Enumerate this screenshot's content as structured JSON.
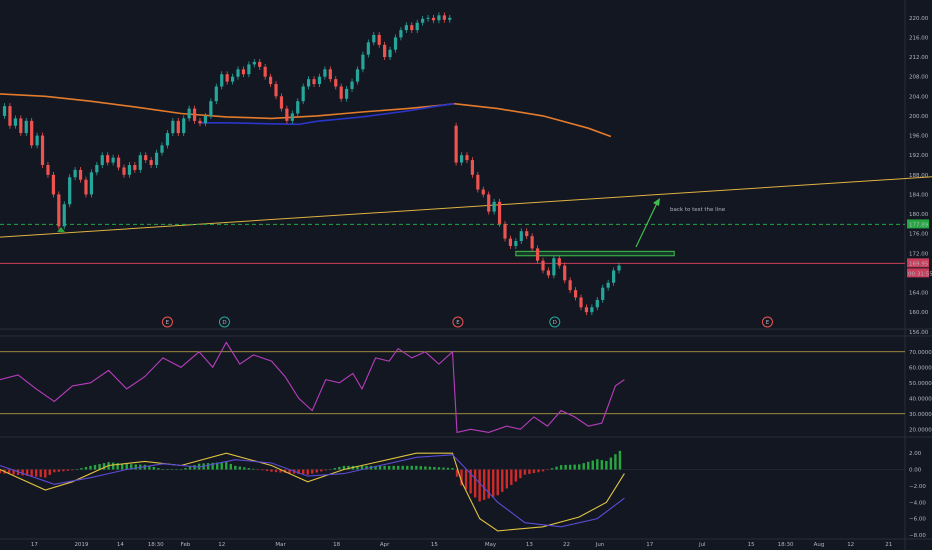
{
  "chart_data": [
    {
      "type": "candlestick",
      "panel": "price",
      "ylim": [
        158,
        222
      ],
      "y_ticks": [
        "220.00",
        "216.00",
        "212.00",
        "208.00",
        "204.00",
        "200.00",
        "196.00",
        "192.00",
        "188.00",
        "184.00",
        "180.00",
        "176.00",
        "172.00",
        "168.00",
        "164.00",
        "160.00",
        "156.00"
      ],
      "price_labels": [
        "177.89",
        "169.95",
        "00:31:55"
      ],
      "price_label_values": [
        177.89,
        169.95
      ],
      "annotation": "back to test the line",
      "events": [
        {
          "label": "E",
          "x": 0.185
        },
        {
          "label": "D",
          "x": 0.248
        },
        {
          "label": "E",
          "x": 0.506
        },
        {
          "label": "D",
          "x": 0.613
        },
        {
          "label": "E",
          "x": 0.848
        }
      ],
      "ma_orange": [
        [
          0,
          204.5
        ],
        [
          0.05,
          204.0
        ],
        [
          0.1,
          203.0
        ],
        [
          0.15,
          201.8
        ],
        [
          0.2,
          200.5
        ],
        [
          0.25,
          199.8
        ],
        [
          0.3,
          199.5
        ],
        [
          0.35,
          200.0
        ],
        [
          0.4,
          200.8
        ],
        [
          0.45,
          201.5
        ],
        [
          0.49,
          202.2
        ],
        [
          0.502,
          202.5
        ],
        [
          0.55,
          201.5
        ],
        [
          0.6,
          200.0
        ],
        [
          0.65,
          197.5
        ],
        [
          0.675,
          195.8
        ]
      ],
      "ma_blue": [
        [
          0.22,
          198.6
        ],
        [
          0.25,
          198.6
        ],
        [
          0.3,
          198.4
        ],
        [
          0.33,
          198.3
        ],
        [
          0.35,
          198.9
        ],
        [
          0.4,
          199.8
        ],
        [
          0.45,
          201.0
        ],
        [
          0.48,
          201.9
        ],
        [
          0.502,
          202.5
        ]
      ],
      "trendline": [
        [
          0,
          175.3
        ],
        [
          0.98,
          187.0
        ]
      ],
      "green_hline": 177.89,
      "red_hline": 169.95,
      "green_zone": [
        0.57,
        0.745,
        171.5,
        172.4
      ],
      "candles": [
        {
          "x": 0.005,
          "o": 200.0,
          "c": 202.0
        },
        {
          "x": 0.011,
          "o": 202.0,
          "c": 198.0
        },
        {
          "x": 0.017,
          "o": 198.0,
          "c": 199.5
        },
        {
          "x": 0.023,
          "o": 199.5,
          "c": 196.5
        },
        {
          "x": 0.029,
          "o": 196.5,
          "c": 199.0
        },
        {
          "x": 0.035,
          "o": 199.0,
          "c": 194.0
        },
        {
          "x": 0.041,
          "o": 194.0,
          "c": 196.0
        },
        {
          "x": 0.047,
          "o": 196.0,
          "c": 190.0
        },
        {
          "x": 0.053,
          "o": 190.0,
          "c": 188.0
        },
        {
          "x": 0.059,
          "o": 188.0,
          "c": 184.0
        },
        {
          "x": 0.065,
          "o": 184.0,
          "c": 177.5
        },
        {
          "x": 0.071,
          "o": 177.5,
          "c": 182.0
        },
        {
          "x": 0.077,
          "o": 182.0,
          "c": 187.5
        },
        {
          "x": 0.083,
          "o": 187.5,
          "c": 189.0
        },
        {
          "x": 0.089,
          "o": 189.0,
          "c": 187.0
        },
        {
          "x": 0.095,
          "o": 187.0,
          "c": 184.0
        },
        {
          "x": 0.101,
          "o": 184.0,
          "c": 188.5
        },
        {
          "x": 0.107,
          "o": 188.5,
          "c": 190.0
        },
        {
          "x": 0.113,
          "o": 190.0,
          "c": 192.0
        },
        {
          "x": 0.119,
          "o": 192.0,
          "c": 190.5
        },
        {
          "x": 0.125,
          "o": 190.5,
          "c": 191.5
        },
        {
          "x": 0.131,
          "o": 191.5,
          "c": 189.5
        },
        {
          "x": 0.137,
          "o": 189.5,
          "c": 188.0
        },
        {
          "x": 0.143,
          "o": 188.0,
          "c": 190.0
        },
        {
          "x": 0.149,
          "o": 190.0,
          "c": 189.0
        },
        {
          "x": 0.155,
          "o": 189.0,
          "c": 192.0
        },
        {
          "x": 0.161,
          "o": 192.0,
          "c": 191.0
        },
        {
          "x": 0.167,
          "o": 191.0,
          "c": 190.0
        },
        {
          "x": 0.173,
          "o": 190.0,
          "c": 192.5
        },
        {
          "x": 0.179,
          "o": 192.5,
          "c": 194.0
        },
        {
          "x": 0.185,
          "o": 194.0,
          "c": 196.5
        },
        {
          "x": 0.191,
          "o": 196.5,
          "c": 199.0
        },
        {
          "x": 0.197,
          "o": 199.0,
          "c": 196.5
        },
        {
          "x": 0.203,
          "o": 196.5,
          "c": 199.5
        },
        {
          "x": 0.209,
          "o": 199.5,
          "c": 201.5
        },
        {
          "x": 0.215,
          "o": 201.5,
          "c": 199.0
        },
        {
          "x": 0.221,
          "o": 199.0,
          "c": 198.5
        },
        {
          "x": 0.227,
          "o": 198.5,
          "c": 200.0
        },
        {
          "x": 0.233,
          "o": 200.0,
          "c": 203.0
        },
        {
          "x": 0.239,
          "o": 203.0,
          "c": 206.0
        },
        {
          "x": 0.245,
          "o": 206.0,
          "c": 208.5
        },
        {
          "x": 0.251,
          "o": 208.5,
          "c": 207.0
        },
        {
          "x": 0.257,
          "o": 207.0,
          "c": 208.0
        },
        {
          "x": 0.263,
          "o": 208.0,
          "c": 209.5
        },
        {
          "x": 0.269,
          "o": 209.5,
          "c": 208.5
        },
        {
          "x": 0.275,
          "o": 208.5,
          "c": 210.5
        },
        {
          "x": 0.281,
          "o": 210.5,
          "c": 211.0
        },
        {
          "x": 0.287,
          "o": 211.0,
          "c": 210.0
        },
        {
          "x": 0.293,
          "o": 210.0,
          "c": 208.0
        },
        {
          "x": 0.299,
          "o": 208.0,
          "c": 206.5
        },
        {
          "x": 0.305,
          "o": 206.5,
          "c": 204.0
        },
        {
          "x": 0.311,
          "o": 204.0,
          "c": 201.5
        },
        {
          "x": 0.317,
          "o": 201.5,
          "c": 199.0
        },
        {
          "x": 0.323,
          "o": 199.0,
          "c": 200.5
        },
        {
          "x": 0.329,
          "o": 200.5,
          "c": 203.0
        },
        {
          "x": 0.335,
          "o": 203.0,
          "c": 206.0
        },
        {
          "x": 0.341,
          "o": 206.0,
          "c": 207.5
        },
        {
          "x": 0.347,
          "o": 207.5,
          "c": 206.5
        },
        {
          "x": 0.353,
          "o": 206.5,
          "c": 208.0
        },
        {
          "x": 0.359,
          "o": 208.0,
          "c": 209.5
        },
        {
          "x": 0.365,
          "o": 209.5,
          "c": 207.5
        },
        {
          "x": 0.371,
          "o": 207.5,
          "c": 206.0
        },
        {
          "x": 0.377,
          "o": 206.0,
          "c": 203.5
        },
        {
          "x": 0.383,
          "o": 203.5,
          "c": 205.5
        },
        {
          "x": 0.389,
          "o": 205.5,
          "c": 207.0
        },
        {
          "x": 0.395,
          "o": 207.0,
          "c": 209.5
        },
        {
          "x": 0.401,
          "o": 209.5,
          "c": 212.5
        },
        {
          "x": 0.407,
          "o": 212.5,
          "c": 215.0
        },
        {
          "x": 0.413,
          "o": 215.0,
          "c": 216.5
        },
        {
          "x": 0.419,
          "o": 216.5,
          "c": 214.5
        },
        {
          "x": 0.425,
          "o": 214.5,
          "c": 212.0
        },
        {
          "x": 0.431,
          "o": 212.0,
          "c": 213.5
        },
        {
          "x": 0.437,
          "o": 213.5,
          "c": 216.0
        },
        {
          "x": 0.443,
          "o": 216.0,
          "c": 217.5
        },
        {
          "x": 0.449,
          "o": 217.5,
          "c": 218.5
        },
        {
          "x": 0.455,
          "o": 218.5,
          "c": 217.5
        },
        {
          "x": 0.461,
          "o": 217.5,
          "c": 219.0
        },
        {
          "x": 0.467,
          "o": 219.0,
          "c": 219.8
        },
        {
          "x": 0.473,
          "o": 219.8,
          "c": 220.0
        },
        {
          "x": 0.479,
          "o": 220.0,
          "c": 219.5
        },
        {
          "x": 0.485,
          "o": 219.5,
          "c": 220.5
        },
        {
          "x": 0.491,
          "o": 220.5,
          "c": 219.6
        },
        {
          "x": 0.497,
          "o": 219.6,
          "c": 220.0
        },
        {
          "x": 0.504,
          "o": 198.0,
          "c": 190.5
        },
        {
          "x": 0.51,
          "o": 190.5,
          "c": 192.0
        },
        {
          "x": 0.516,
          "o": 192.0,
          "c": 191.0
        },
        {
          "x": 0.522,
          "o": 191.0,
          "c": 188.0
        },
        {
          "x": 0.528,
          "o": 188.0,
          "c": 185.0
        },
        {
          "x": 0.534,
          "o": 185.0,
          "c": 184.0
        },
        {
          "x": 0.54,
          "o": 184.0,
          "c": 180.5
        },
        {
          "x": 0.546,
          "o": 180.5,
          "c": 182.5
        },
        {
          "x": 0.552,
          "o": 182.5,
          "c": 178.0
        },
        {
          "x": 0.558,
          "o": 178.0,
          "c": 175.0
        },
        {
          "x": 0.564,
          "o": 175.0,
          "c": 173.5
        },
        {
          "x": 0.57,
          "o": 173.5,
          "c": 174.5
        },
        {
          "x": 0.576,
          "o": 174.5,
          "c": 176.5
        },
        {
          "x": 0.582,
          "o": 176.5,
          "c": 175.5
        },
        {
          "x": 0.588,
          "o": 175.5,
          "c": 173.0
        },
        {
          "x": 0.594,
          "o": 173.0,
          "c": 170.5
        },
        {
          "x": 0.6,
          "o": 170.5,
          "c": 168.5
        },
        {
          "x": 0.606,
          "o": 168.5,
          "c": 167.5
        },
        {
          "x": 0.612,
          "o": 167.5,
          "c": 171.0
        },
        {
          "x": 0.618,
          "o": 171.0,
          "c": 169.5
        },
        {
          "x": 0.624,
          "o": 169.5,
          "c": 166.5
        },
        {
          "x": 0.63,
          "o": 166.5,
          "c": 164.5
        },
        {
          "x": 0.636,
          "o": 164.5,
          "c": 163.0
        },
        {
          "x": 0.642,
          "o": 163.0,
          "c": 161.0
        },
        {
          "x": 0.648,
          "o": 161.0,
          "c": 160.0
        },
        {
          "x": 0.654,
          "o": 160.0,
          "c": 161.0
        },
        {
          "x": 0.66,
          "o": 161.0,
          "c": 162.5
        },
        {
          "x": 0.666,
          "o": 162.5,
          "c": 165.0
        },
        {
          "x": 0.672,
          "o": 165.0,
          "c": 166.0
        },
        {
          "x": 0.678,
          "o": 166.0,
          "c": 168.5
        },
        {
          "x": 0.684,
          "o": 168.5,
          "c": 169.5
        }
      ]
    },
    {
      "type": "line",
      "panel": "rsi",
      "ylim": [
        15,
        75
      ],
      "y_ticks": [
        "70.0000",
        "60.0000",
        "50.0000",
        "40.0000",
        "30.0000",
        "20.0000"
      ],
      "bands": [
        70,
        30
      ],
      "series": [
        {
          "values": [
            [
              0,
              52
            ],
            [
              0.02,
              55
            ],
            [
              0.04,
              46
            ],
            [
              0.06,
              38
            ],
            [
              0.08,
              48
            ],
            [
              0.1,
              50
            ],
            [
              0.12,
              58
            ],
            [
              0.14,
              46
            ],
            [
              0.16,
              54
            ],
            [
              0.18,
              66
            ],
            [
              0.2,
              60
            ],
            [
              0.22,
              70
            ],
            [
              0.235,
              60
            ],
            [
              0.25,
              76
            ],
            [
              0.265,
              62
            ],
            [
              0.28,
              68
            ],
            [
              0.3,
              64
            ],
            [
              0.315,
              54
            ],
            [
              0.33,
              40
            ],
            [
              0.345,
              32
            ],
            [
              0.36,
              52
            ],
            [
              0.375,
              50
            ],
            [
              0.39,
              56
            ],
            [
              0.4,
              46
            ],
            [
              0.415,
              66
            ],
            [
              0.43,
              64
            ],
            [
              0.44,
              72
            ],
            [
              0.455,
              66
            ],
            [
              0.47,
              70
            ],
            [
              0.485,
              62
            ],
            [
              0.5,
              70
            ],
            [
              0.505,
              18
            ],
            [
              0.52,
              20
            ],
            [
              0.54,
              18
            ],
            [
              0.56,
              22
            ],
            [
              0.575,
              20
            ],
            [
              0.59,
              28
            ],
            [
              0.605,
              22
            ],
            [
              0.62,
              32
            ],
            [
              0.635,
              28
            ],
            [
              0.65,
              22
            ],
            [
              0.665,
              24
            ],
            [
              0.68,
              48
            ],
            [
              0.69,
              52
            ]
          ]
        }
      ]
    },
    {
      "type": "line",
      "panel": "macd",
      "ylim": [
        -8,
        3
      ],
      "y_ticks": [
        "2.00",
        "0.00",
        "−2.00",
        "−4.00",
        "−6.00",
        "−8.00"
      ],
      "series": [
        {
          "values": [
            [
              0,
              0
            ],
            [
              0.05,
              -2.5
            ],
            [
              0.08,
              -1.5
            ],
            [
              0.12,
              0.5
            ],
            [
              0.16,
              1
            ],
            [
              0.2,
              0.5
            ],
            [
              0.25,
              2
            ],
            [
              0.3,
              0.5
            ],
            [
              0.34,
              -1.5
            ],
            [
              0.38,
              0
            ],
            [
              0.42,
              1
            ],
            [
              0.46,
              2
            ],
            [
              0.5,
              2
            ],
            [
              0.51,
              -1.5
            ],
            [
              0.53,
              -6
            ],
            [
              0.55,
              -7.5
            ],
            [
              0.6,
              -7
            ],
            [
              0.64,
              -5.8
            ],
            [
              0.67,
              -4
            ],
            [
              0.69,
              -0.5
            ]
          ]
        },
        {
          "values": [
            [
              0,
              0.5
            ],
            [
              0.06,
              -1.8
            ],
            [
              0.1,
              -1
            ],
            [
              0.14,
              0
            ],
            [
              0.18,
              0.7
            ],
            [
              0.22,
              0.3
            ],
            [
              0.26,
              1.2
            ],
            [
              0.3,
              0.8
            ],
            [
              0.34,
              -0.8
            ],
            [
              0.38,
              -0.5
            ],
            [
              0.42,
              0.5
            ],
            [
              0.46,
              1.5
            ],
            [
              0.5,
              1.8
            ],
            [
              0.52,
              -0.5
            ],
            [
              0.55,
              -4
            ],
            [
              0.58,
              -6.5
            ],
            [
              0.62,
              -7
            ],
            [
              0.66,
              -6
            ],
            [
              0.69,
              -3.5
            ]
          ]
        }
      ]
    }
  ],
  "x_labels": [
    "17",
    "2019",
    "14",
    "18:30",
    "Feb",
    "12",
    "Mar",
    "18",
    "Apr",
    "15",
    "May",
    "13",
    "22",
    "Jun",
    "17",
    "Jul",
    "15",
    "18:30",
    "Aug",
    "12",
    "21"
  ]
}
